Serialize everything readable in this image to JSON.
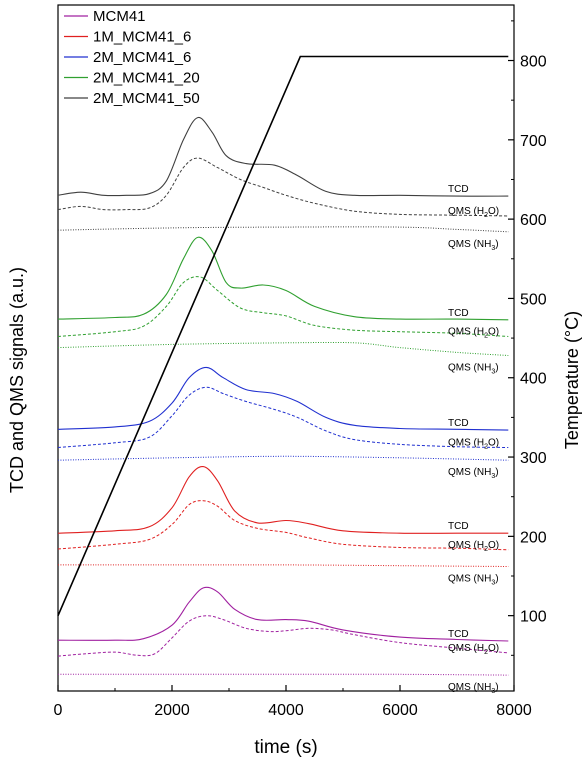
{
  "chart_data": {
    "type": "line",
    "xlabel": "time (s)",
    "ylabel_left": "TCD and QMS signals (a.u.)",
    "ylabel_right": "Temperature (°C)",
    "xlim": [
      0,
      8000
    ],
    "x_ticks": [
      0,
      2000,
      4000,
      6000,
      8000
    ],
    "y2lim": [
      5,
      870
    ],
    "y2_ticks": [
      100,
      200,
      300,
      400,
      500,
      600,
      700,
      800
    ],
    "legend_position": "top-left",
    "grid": false,
    "temperature_ramp": {
      "name": "Temperature",
      "color": "#000000",
      "points": [
        [
          0,
          100
        ],
        [
          4250,
          805
        ],
        [
          7900,
          805
        ]
      ]
    },
    "samples": [
      {
        "name": "MCM41",
        "color": "#a020a0",
        "tcd": {
          "x": [
            0,
            1000,
            1500,
            2000,
            2300,
            2550,
            2800,
            3100,
            3500,
            4000,
            4400,
            5000,
            6000,
            7000,
            7900
          ],
          "y": [
            69,
            69,
            71,
            88,
            117,
            135,
            130,
            108,
            95,
            95,
            93,
            82,
            73,
            70,
            68
          ]
        },
        "h2o": {
          "x": [
            0,
            500,
            1000,
            1400,
            1700,
            2000,
            2300,
            2600,
            2900,
            3300,
            3700,
            4000,
            4400,
            4800,
            5200,
            6000,
            7000,
            7900
          ],
          "y": [
            49,
            52,
            54,
            50,
            52,
            72,
            93,
            100,
            95,
            84,
            80,
            81,
            84,
            82,
            76,
            66,
            59,
            53
          ]
        },
        "nh3": {
          "x": [
            0,
            2000,
            4000,
            6000,
            7900
          ],
          "y": [
            26,
            26,
            26,
            26,
            25
          ]
        }
      },
      {
        "name": "1M_MCM41_6",
        "color": "#e02020",
        "tcd": {
          "x": [
            0,
            1000,
            1600,
            2000,
            2300,
            2550,
            2800,
            3100,
            3500,
            4000,
            4400,
            5000,
            6000,
            7000,
            7900
          ],
          "y": [
            204,
            207,
            212,
            236,
            275,
            288,
            270,
            232,
            217,
            220,
            216,
            207,
            204,
            204,
            204
          ]
        },
        "h2o": {
          "x": [
            0,
            1000,
            1600,
            2000,
            2300,
            2550,
            2800,
            3100,
            3500,
            4000,
            4400,
            5000,
            6000,
            7000,
            7900
          ],
          "y": [
            184,
            190,
            196,
            215,
            240,
            245,
            238,
            220,
            210,
            205,
            198,
            190,
            186,
            185,
            183
          ]
        },
        "nh3": {
          "x": [
            0,
            2000,
            4000,
            6000,
            7900
          ],
          "y": [
            164,
            164,
            164,
            163,
            162
          ]
        }
      },
      {
        "name": "2M_MCM41_6",
        "color": "#2030d0",
        "tcd": {
          "x": [
            0,
            1000,
            1600,
            2000,
            2300,
            2600,
            2900,
            3300,
            3800,
            4200,
            4700,
            5200,
            6000,
            7000,
            7900
          ],
          "y": [
            335,
            338,
            345,
            368,
            400,
            413,
            400,
            385,
            380,
            370,
            350,
            340,
            336,
            335,
            334
          ]
        },
        "h2o": {
          "x": [
            0,
            1000,
            1600,
            2000,
            2300,
            2600,
            2900,
            3300,
            3800,
            4200,
            4700,
            5200,
            6000,
            7000,
            7900
          ],
          "y": [
            312,
            318,
            325,
            352,
            378,
            388,
            380,
            370,
            360,
            350,
            333,
            322,
            316,
            313,
            312
          ]
        },
        "nh3": {
          "x": [
            0,
            2000,
            4000,
            6000,
            7900
          ],
          "y": [
            296,
            299,
            301,
            299,
            296
          ]
        }
      },
      {
        "name": "2M_MCM41_20",
        "color": "#30a030",
        "tcd": {
          "x": [
            0,
            1000,
            1500,
            1900,
            2200,
            2450,
            2700,
            2950,
            3200,
            3600,
            4000,
            4500,
            5200,
            6000,
            7000,
            7900
          ],
          "y": [
            474,
            476,
            480,
            505,
            550,
            577,
            560,
            520,
            513,
            517,
            510,
            490,
            477,
            474,
            474,
            473
          ]
        },
        "h2o": {
          "x": [
            0,
            1000,
            1500,
            1900,
            2200,
            2500,
            2800,
            3200,
            3600,
            4000,
            4500,
            5200,
            6000,
            7000,
            7900
          ],
          "y": [
            452,
            458,
            465,
            490,
            520,
            527,
            510,
            488,
            482,
            478,
            466,
            460,
            458,
            456,
            452
          ]
        },
        "nh3": {
          "x": [
            0,
            2000,
            4000,
            5200,
            6000,
            7000,
            7900
          ],
          "y": [
            438,
            442,
            444,
            444,
            438,
            432,
            428
          ]
        }
      },
      {
        "name": "2M_MCM41_50",
        "color": "#404040",
        "tcd": {
          "x": [
            0,
            400,
            800,
            1200,
            1600,
            1900,
            2200,
            2450,
            2700,
            2950,
            3300,
            3800,
            4200,
            4700,
            5200,
            6000,
            7000,
            7900
          ],
          "y": [
            630,
            634,
            630,
            630,
            632,
            648,
            700,
            728,
            710,
            680,
            670,
            668,
            655,
            635,
            630,
            630,
            629,
            629
          ]
        },
        "h2o": {
          "x": [
            0,
            400,
            800,
            1200,
            1600,
            1900,
            2200,
            2450,
            2800,
            3200,
            3600,
            4000,
            4500,
            5200,
            6000,
            7000,
            7900
          ],
          "y": [
            612,
            616,
            612,
            612,
            614,
            630,
            665,
            677,
            665,
            650,
            640,
            630,
            620,
            610,
            606,
            605,
            604
          ]
        },
        "nh3": {
          "x": [
            0,
            2000,
            4000,
            6000,
            7000,
            7900
          ],
          "y": [
            586,
            589,
            590,
            590,
            587,
            584
          ]
        }
      }
    ],
    "annotations": [
      {
        "sample": "MCM41",
        "labels": [
          "TCD",
          "QMS (H",
          "2",
          "O)",
          "QMS (NH",
          "3",
          ")"
        ]
      },
      {
        "sample": "1M_MCM41_6",
        "labels": [
          "TCD",
          "QMS (H",
          "2",
          "O)",
          "QMS (NH",
          "3",
          ")"
        ]
      },
      {
        "sample": "2M_MCM41_6",
        "labels": [
          "TCD",
          "QMS (H",
          "2",
          "O)",
          "QMS (NH",
          "3",
          ")"
        ]
      },
      {
        "sample": "2M_MCM41_20",
        "labels": [
          "TCD",
          "QMS (H",
          "2",
          "O)",
          "QMS (NH",
          "3",
          ")"
        ]
      },
      {
        "sample": "2M_MCM41_50",
        "labels": [
          "TCD",
          "QMS (H",
          "2",
          "O)",
          "QMS (NH",
          "3",
          ")"
        ]
      }
    ]
  }
}
